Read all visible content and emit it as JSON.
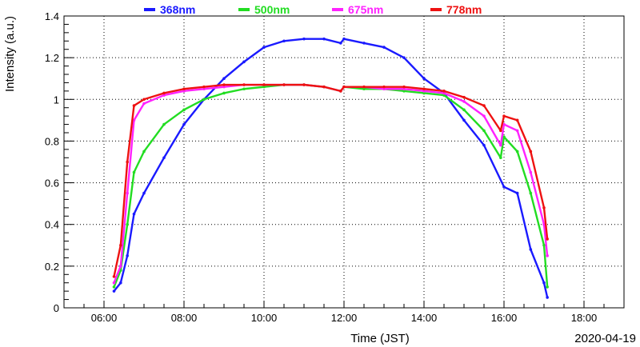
{
  "chart_data": {
    "type": "scatter",
    "title": "",
    "xlabel": "Time (JST)",
    "ylabel": "Intensity (a.u.)",
    "date": "2020-04-19",
    "xlim": [
      "05:00",
      "19:00"
    ],
    "ylim": [
      0,
      1.4
    ],
    "x_ticks": [
      "06:00",
      "08:00",
      "10:00",
      "12:00",
      "14:00",
      "16:00",
      "18:00"
    ],
    "y_ticks": [
      "0",
      "0.2",
      "0.4",
      "0.6",
      "0.8",
      "1",
      "1.2",
      "1.4"
    ],
    "grid": true,
    "legend_position": "top",
    "series": [
      {
        "name": "368nm",
        "color": "#1a1aff",
        "x": [
          "06:15",
          "06:25",
          "06:35",
          "06:45",
          "07:00",
          "07:30",
          "08:00",
          "08:30",
          "09:00",
          "09:30",
          "10:00",
          "10:30",
          "11:00",
          "11:30",
          "11:55",
          "12:00",
          "12:30",
          "13:00",
          "13:30",
          "14:00",
          "14:30",
          "15:00",
          "15:30",
          "16:00",
          "16:20",
          "16:40",
          "17:00",
          "17:05"
        ],
        "values": [
          0.08,
          0.12,
          0.25,
          0.45,
          0.55,
          0.72,
          0.88,
          1.0,
          1.1,
          1.18,
          1.25,
          1.28,
          1.29,
          1.29,
          1.27,
          1.29,
          1.27,
          1.25,
          1.2,
          1.1,
          1.03,
          0.9,
          0.78,
          0.58,
          0.55,
          0.28,
          0.12,
          0.05
        ]
      },
      {
        "name": "500nm",
        "color": "#22dd22",
        "x": [
          "06:15",
          "06:25",
          "06:35",
          "06:45",
          "07:00",
          "07:30",
          "08:00",
          "08:30",
          "09:00",
          "09:30",
          "10:00",
          "10:30",
          "11:00",
          "11:30",
          "11:55",
          "12:00",
          "12:30",
          "13:00",
          "13:30",
          "14:00",
          "14:30",
          "15:00",
          "15:30",
          "15:55",
          "16:00",
          "16:20",
          "16:40",
          "17:00",
          "17:05"
        ],
        "values": [
          0.1,
          0.18,
          0.4,
          0.65,
          0.75,
          0.88,
          0.95,
          1.0,
          1.03,
          1.05,
          1.06,
          1.07,
          1.07,
          1.06,
          1.04,
          1.06,
          1.05,
          1.05,
          1.04,
          1.03,
          1.02,
          0.95,
          0.85,
          0.72,
          0.82,
          0.75,
          0.55,
          0.3,
          0.1
        ]
      },
      {
        "name": "675nm",
        "color": "#ff22ff",
        "x": [
          "06:15",
          "06:25",
          "06:35",
          "06:45",
          "07:00",
          "07:30",
          "08:00",
          "08:30",
          "09:00",
          "09:30",
          "10:00",
          "10:30",
          "11:00",
          "11:30",
          "11:55",
          "12:00",
          "12:30",
          "13:00",
          "13:30",
          "14:00",
          "14:30",
          "15:00",
          "15:30",
          "15:55",
          "16:00",
          "16:20",
          "16:40",
          "17:00",
          "17:05"
        ],
        "values": [
          0.12,
          0.2,
          0.55,
          0.9,
          0.98,
          1.02,
          1.04,
          1.05,
          1.06,
          1.07,
          1.07,
          1.07,
          1.07,
          1.06,
          1.04,
          1.06,
          1.06,
          1.05,
          1.05,
          1.04,
          1.03,
          0.99,
          0.92,
          0.78,
          0.88,
          0.85,
          0.65,
          0.4,
          0.25
        ]
      },
      {
        "name": "778nm",
        "color": "#ee1111",
        "x": [
          "06:15",
          "06:25",
          "06:35",
          "06:45",
          "07:00",
          "07:30",
          "08:00",
          "08:30",
          "09:00",
          "09:30",
          "10:00",
          "10:30",
          "11:00",
          "11:30",
          "11:55",
          "12:00",
          "12:30",
          "13:00",
          "13:30",
          "14:00",
          "14:30",
          "15:00",
          "15:30",
          "15:55",
          "16:00",
          "16:20",
          "16:40",
          "17:00",
          "17:05"
        ],
        "values": [
          0.15,
          0.3,
          0.7,
          0.97,
          1.0,
          1.03,
          1.05,
          1.06,
          1.07,
          1.07,
          1.07,
          1.07,
          1.07,
          1.06,
          1.04,
          1.06,
          1.06,
          1.06,
          1.06,
          1.05,
          1.04,
          1.01,
          0.97,
          0.85,
          0.92,
          0.9,
          0.75,
          0.48,
          0.33
        ]
      }
    ]
  }
}
